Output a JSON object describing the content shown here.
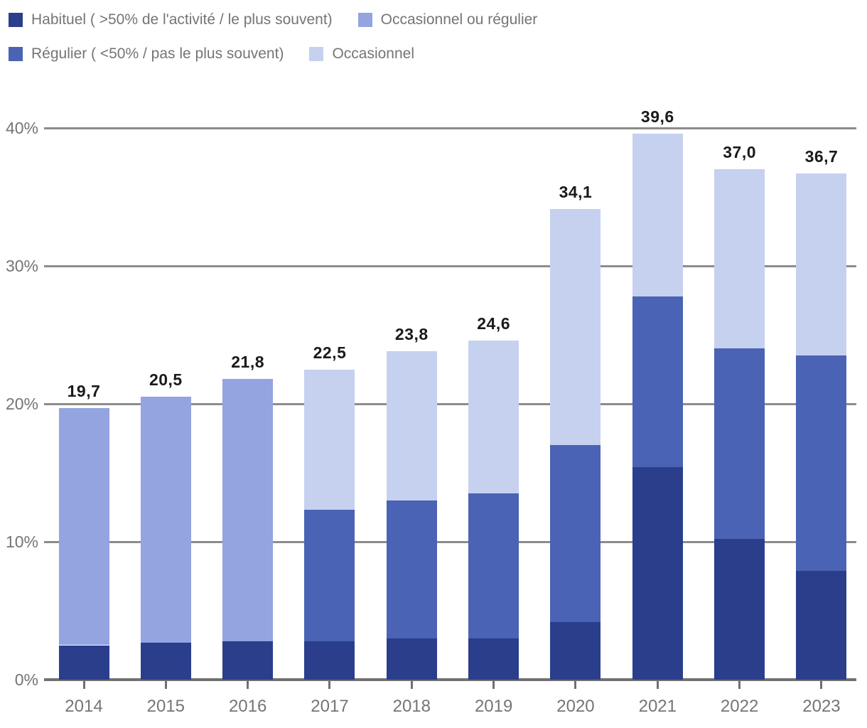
{
  "legend": {
    "rows": [
      [
        {
          "key": "habituel",
          "label": "Habituel ( >50% de l'activité / le plus souvent)",
          "color": "#2A3E8C"
        },
        {
          "key": "occasionnel_ou_regulier",
          "label": "Occasionnel ou régulier",
          "color": "#94A4E0"
        }
      ],
      [
        {
          "key": "regulier",
          "label": "Régulier ( <50% / pas le plus souvent)",
          "color": "#4A63B5"
        },
        {
          "key": "occasionnel",
          "label": "Occasionnel",
          "color": "#C6D1F0"
        }
      ]
    ]
  },
  "chart_data": {
    "type": "bar",
    "stacked": true,
    "title": "",
    "xlabel": "",
    "ylabel": "",
    "categories": [
      "2014",
      "2015",
      "2016",
      "2017",
      "2018",
      "2019",
      "2020",
      "2021",
      "2022",
      "2023"
    ],
    "series": [
      {
        "name": "Habituel ( >50% de l'activité / le plus souvent)",
        "color": "#2A3E8C",
        "values": [
          2.5,
          2.7,
          2.8,
          2.8,
          3.0,
          3.0,
          4.2,
          15.4,
          10.2,
          7.9
        ]
      },
      {
        "name": "Régulier ( <50% / pas le plus souvent)",
        "color": "#4A63B5",
        "values": [
          0,
          0,
          0,
          9.5,
          10.0,
          10.5,
          12.8,
          12.4,
          13.8,
          15.6
        ]
      },
      {
        "name": "Occasionnel ou régulier",
        "color": "#94A4E0",
        "values": [
          17.2,
          17.8,
          19.0,
          0,
          0,
          0,
          0,
          0,
          0,
          0
        ]
      },
      {
        "name": "Occasionnel",
        "color": "#C6D1F0",
        "values": [
          0,
          0,
          0,
          10.2,
          10.8,
          11.1,
          17.1,
          11.8,
          13.0,
          13.2
        ]
      }
    ],
    "totals": [
      "19,7",
      "20,5",
      "21,8",
      "22,5",
      "23,8",
      "24,6",
      "34,1",
      "39,6",
      "37,0",
      "36,7"
    ],
    "total_values": [
      19.7,
      20.5,
      21.8,
      22.5,
      23.8,
      24.6,
      34.1,
      39.6,
      37.0,
      36.7
    ],
    "y_ticks": [
      "0%",
      "10%",
      "20%",
      "30%",
      "40%"
    ],
    "y_tick_values": [
      0,
      10,
      20,
      30,
      40
    ],
    "ylim": [
      0,
      40
    ],
    "grid": true,
    "legend_position": "top"
  },
  "colors": {
    "background": "#FFFFFF",
    "grid": "#8C8C8C",
    "baseline": "#707070",
    "tick": "#707070",
    "axis_text": "#757575",
    "total_label_text": "#1A1A1A",
    "separator": "#FFFFFF"
  }
}
